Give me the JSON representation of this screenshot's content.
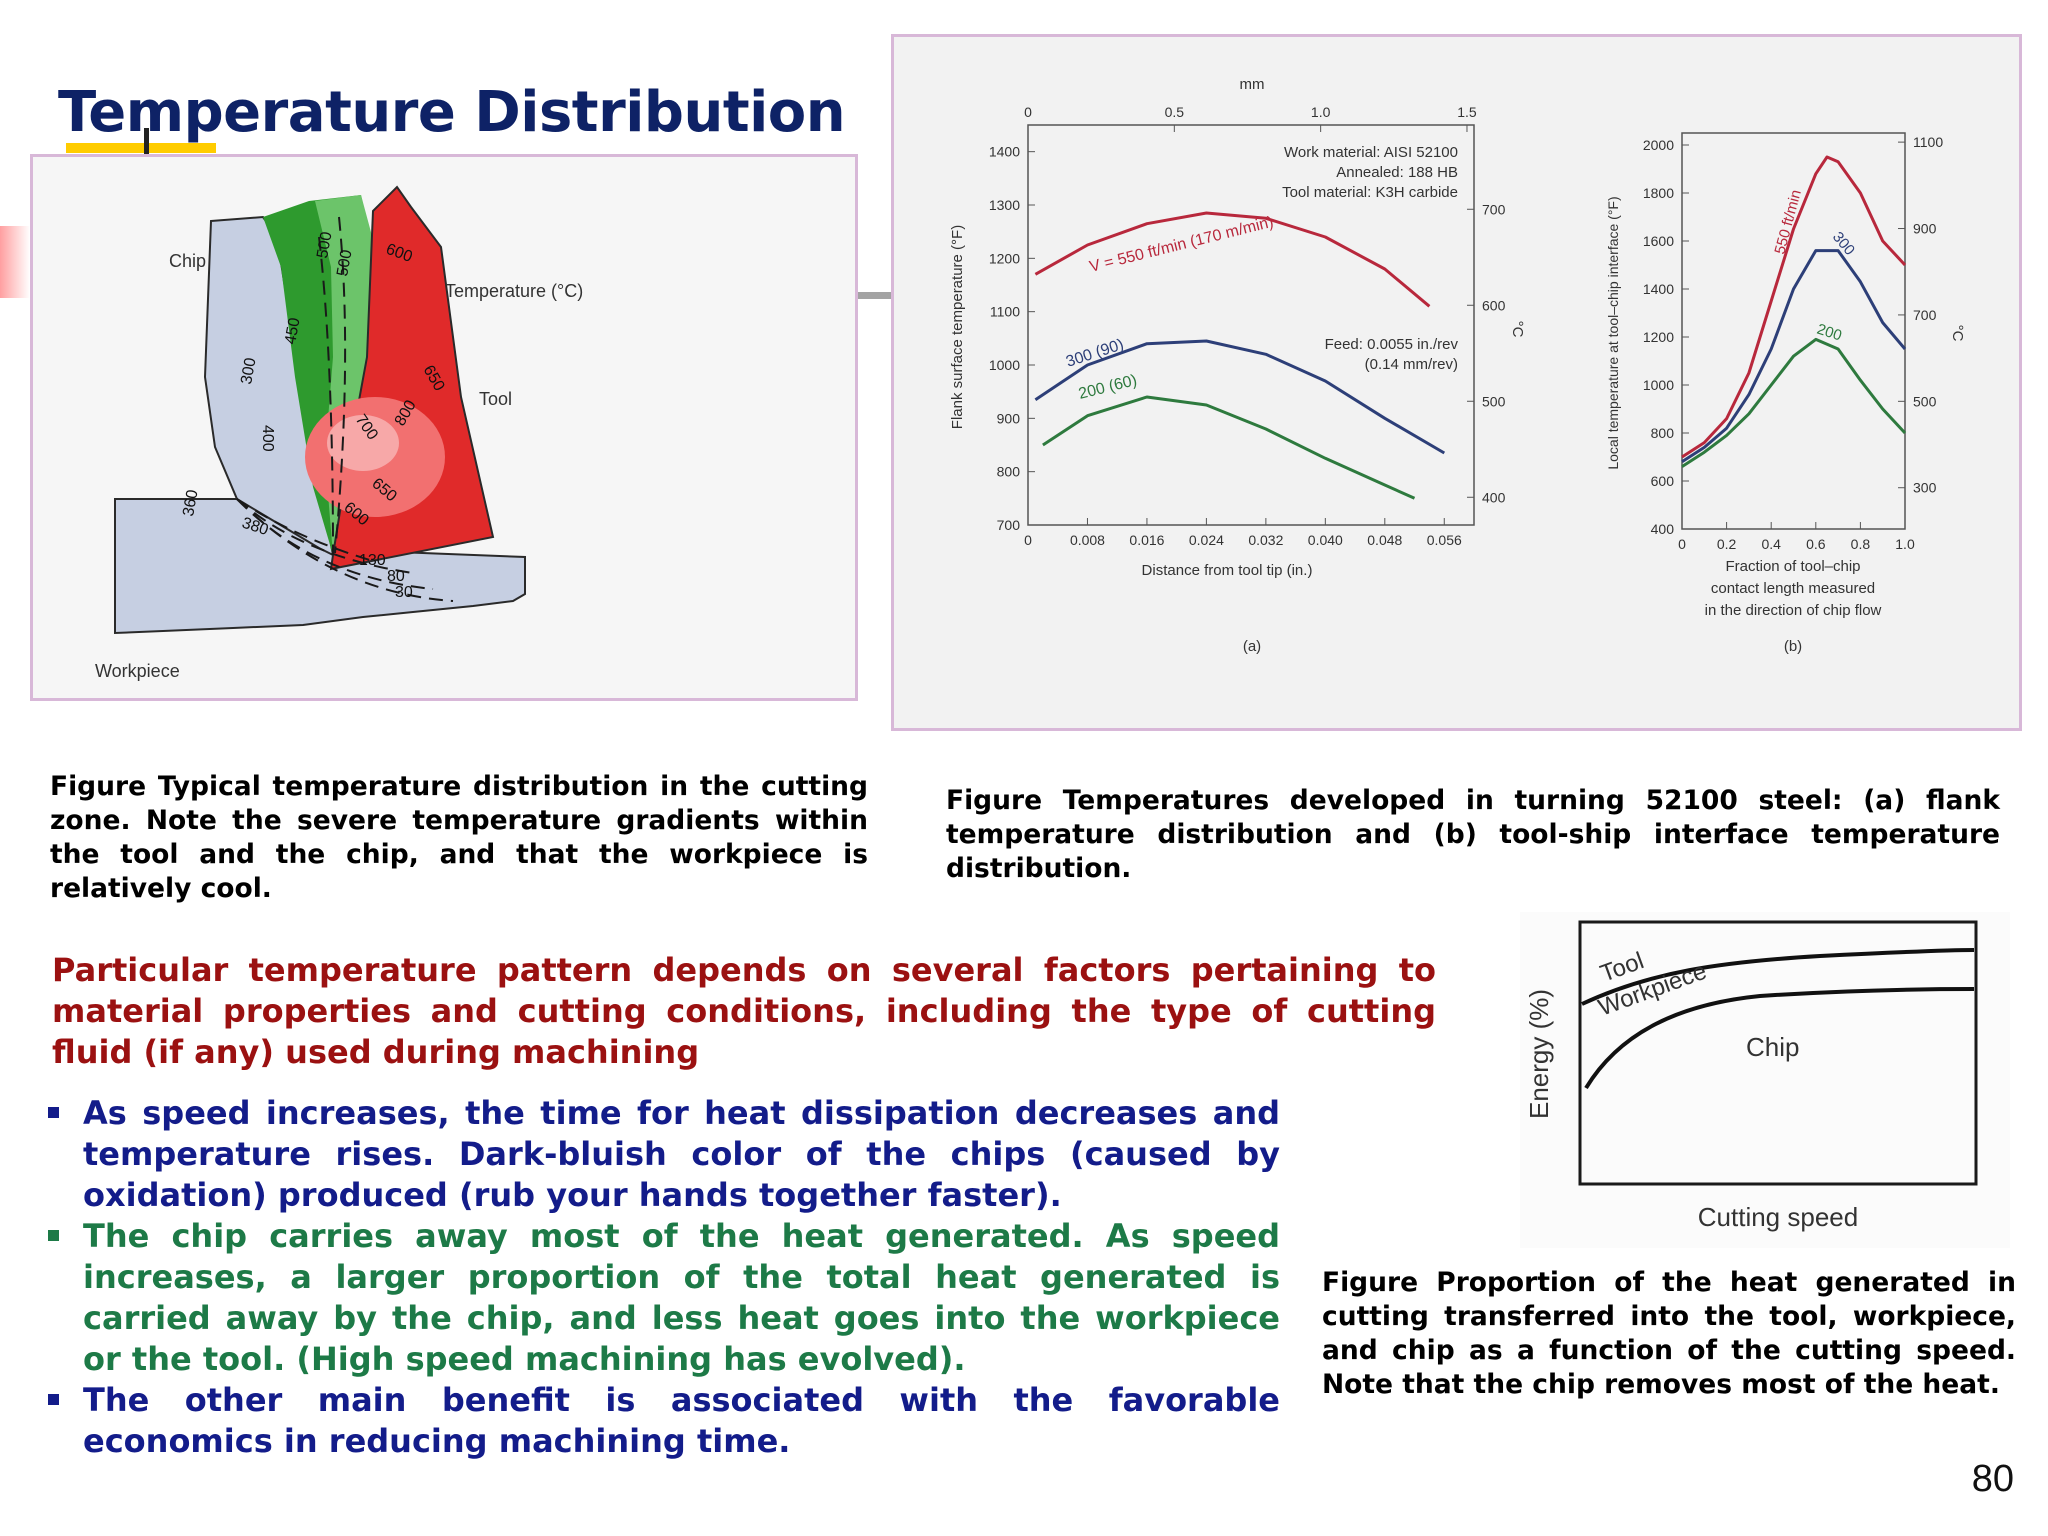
{
  "slide": {
    "title": "Temperature Distribution",
    "page_number": "80"
  },
  "figure_zone": {
    "labels": {
      "chip": "Chip",
      "temperature": "Temperature (°C)",
      "tool": "Tool",
      "workpiece": "Workpiece"
    },
    "isotherms": [
      "300",
      "450",
      "400",
      "360",
      "380",
      "500",
      "500",
      "600",
      "700",
      "650",
      "800",
      "650",
      "600",
      "130",
      "80",
      "30"
    ],
    "colors": {
      "chip_cool": "#c6cfe2",
      "chip_green": "#2e9a2e",
      "tool_red": "#e02a2a"
    },
    "caption": "Figure Typical temperature distribution in the cutting zone.  Note the severe temperature gradients within the tool and the chip, and that the workpiece is relatively cool."
  },
  "figure_temps": {
    "chart_a": {
      "top_axis_unit": "mm",
      "top_ticks": [
        "0",
        "0.5",
        "1.0",
        "1.5"
      ],
      "ylabel": "Flank surface temperature (°F)",
      "yticks": [
        "700",
        "800",
        "900",
        "1000",
        "1100",
        "1200",
        "1300",
        "1400"
      ],
      "right_unit": "°C",
      "right_ticks": [
        "400",
        "500",
        "600",
        "700"
      ],
      "xticks": [
        "0",
        "0.008",
        "0.016",
        "0.024",
        "0.032",
        "0.040",
        "0.048",
        "0.056"
      ],
      "xlabel": "Distance from tool tip (in.)",
      "notes": [
        "Work material: AISI 52100",
        "Annealed: 188 HB",
        "Tool material: K3H carbide"
      ],
      "feed": [
        "Feed: 0.0055 in./rev",
        "(0.14 mm/rev)"
      ],
      "series_labels": [
        "V = 550 ft/min (170 m/min)",
        "300 (90)",
        "200 (60)"
      ],
      "panel_label": "(a)"
    },
    "chart_b": {
      "ylabel": "Local temperature at tool–chip interface (°F)",
      "yticks": [
        "400",
        "600",
        "800",
        "1000",
        "1200",
        "1400",
        "1600",
        "1800",
        "2000"
      ],
      "right_unit": "°C",
      "right_ticks": [
        "300",
        "500",
        "700",
        "900",
        "1100"
      ],
      "xticks": [
        "0",
        "0.2",
        "0.4",
        "0.6",
        "0.8",
        "1.0"
      ],
      "xlabel_lines": [
        "Fraction of tool–chip",
        "contact length measured",
        "in the direction of chip flow"
      ],
      "series_labels": [
        "550 ft/min",
        "300",
        "200"
      ],
      "panel_label": "(b)"
    },
    "series_colors": {
      "v550": "#b8283c",
      "v300": "#2d3f78",
      "v200": "#2e7a3e"
    },
    "caption": "Figure   Temperatures developed in turning 52100 steel:  (a) flank temperature distribution and (b) tool-ship interface temperature distribution."
  },
  "chart_data": [
    {
      "type": "line",
      "title": "",
      "xlabel": "Distance from tool tip (in.)",
      "ylabel": "Flank surface temperature (°F)",
      "xlim": [
        0,
        0.06
      ],
      "ylim": [
        700,
        1450
      ],
      "series": [
        {
          "name": "V = 550 ft/min (170 m/min)",
          "x": [
            0.001,
            0.008,
            0.016,
            0.024,
            0.032,
            0.04,
            0.048,
            0.054
          ],
          "y": [
            1170,
            1225,
            1265,
            1285,
            1275,
            1240,
            1180,
            1110
          ]
        },
        {
          "name": "300 (90)",
          "x": [
            0.001,
            0.008,
            0.016,
            0.024,
            0.032,
            0.04,
            0.048,
            0.056
          ],
          "y": [
            935,
            1000,
            1040,
            1045,
            1020,
            970,
            900,
            835
          ]
        },
        {
          "name": "200 (60)",
          "x": [
            0.002,
            0.008,
            0.016,
            0.024,
            0.032,
            0.04,
            0.048,
            0.052
          ],
          "y": [
            850,
            905,
            940,
            925,
            880,
            825,
            775,
            750
          ]
        }
      ]
    },
    {
      "type": "line",
      "title": "",
      "xlabel": "Fraction of tool–chip contact length measured in the direction of chip flow",
      "ylabel": "Local temperature at tool–chip interface (°F)",
      "xlim": [
        0,
        1.0
      ],
      "ylim": [
        400,
        2050
      ],
      "series": [
        {
          "name": "550 ft/min",
          "x": [
            0,
            0.1,
            0.2,
            0.3,
            0.4,
            0.5,
            0.6,
            0.65,
            0.7,
            0.8,
            0.9,
            1.0
          ],
          "y": [
            700,
            760,
            860,
            1050,
            1350,
            1650,
            1880,
            1950,
            1930,
            1800,
            1600,
            1500
          ]
        },
        {
          "name": "300",
          "x": [
            0,
            0.1,
            0.2,
            0.3,
            0.4,
            0.5,
            0.6,
            0.7,
            0.8,
            0.9,
            1.0
          ],
          "y": [
            680,
            740,
            820,
            960,
            1150,
            1400,
            1560,
            1560,
            1430,
            1260,
            1150
          ]
        },
        {
          "name": "200",
          "x": [
            0,
            0.1,
            0.2,
            0.3,
            0.4,
            0.5,
            0.6,
            0.7,
            0.8,
            0.9,
            1.0
          ],
          "y": [
            660,
            720,
            790,
            880,
            1000,
            1120,
            1190,
            1150,
            1020,
            900,
            800
          ]
        }
      ]
    },
    {
      "type": "line",
      "title": "",
      "xlabel": "Cutting speed",
      "ylabel": "Energy (%)",
      "series": [
        {
          "name": "Tool",
          "x": [
            0,
            0.2,
            0.4,
            0.6,
            0.8,
            1.0
          ],
          "y": [
            0.86,
            0.95,
            0.98,
            0.99,
            0.995,
            1.0
          ]
        },
        {
          "name": "Workpiece",
          "x": [
            0,
            0.2,
            0.4,
            0.6,
            0.8,
            1.0
          ],
          "y": [
            0.3,
            0.72,
            0.86,
            0.9,
            0.92,
            0.93
          ]
        }
      ]
    }
  ],
  "figure_energy": {
    "labels": {
      "tool": "Tool",
      "workpiece": "Workpiece",
      "chip": "Chip",
      "xlabel": "Cutting  speed",
      "ylabel": "Energy  (%)"
    },
    "caption": "Figure Proportion of the heat generated in cutting transferred into the tool, workpiece, and chip as a function of the cutting speed.  Note that the chip removes most of the heat."
  },
  "body": {
    "intro": "Particular temperature pattern depends on several factors pertaining to material properties and cutting conditions, including the type of cutting fluid (if any) used during machining",
    "intro_color": "#9b1111",
    "bullets": [
      {
        "text": "As speed increases, the time for heat dissipation decreases and temperature rises. Dark-bluish color of the chips (caused by oxidation) produced (rub your hands together faster).",
        "color": "#131c8a"
      },
      {
        "text": "The chip carries away most of the heat generated. As speed increases, a larger proportion of the total heat generated is carried away by the chip, and less heat goes into the workpiece or the tool. (High speed machining has evolved).",
        "color": "#1d7a47"
      },
      {
        "text": "The other main benefit is associated with the favorable economics in reducing machining time.",
        "color": "#131c8a"
      }
    ]
  }
}
